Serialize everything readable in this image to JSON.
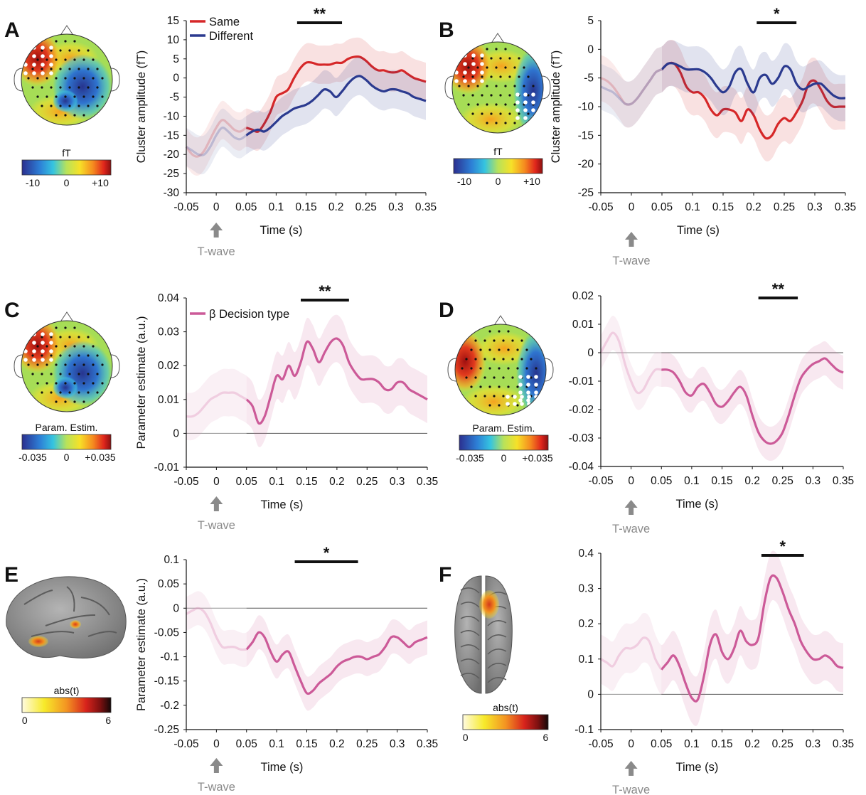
{
  "panels": [
    {
      "letter": "A",
      "map": {
        "type": "head",
        "hot": "left-front",
        "cold": "right-mid",
        "label": "fT",
        "tick_labels": [
          "-10",
          "0",
          "+10"
        ]
      },
      "star": "**",
      "arrow_label": "T-wave",
      "chart_data": {
        "type": "line",
        "title": "",
        "xlabel": "Time (s)",
        "ylabel": "Cluster amplitude (fT)",
        "xlim": [
          -0.05,
          0.35
        ],
        "ylim": [
          -30,
          15
        ],
        "xticks": [
          "-0.05",
          "0",
          "0.05",
          "0.1",
          "0.15",
          "0.2",
          "0.25",
          "0.3",
          "0.35"
        ],
        "yticks": [
          "15",
          "10",
          "5",
          "0",
          "-5",
          "-10",
          "-15",
          "-20",
          "-25",
          "-30"
        ],
        "ytick_values": [
          15,
          10,
          5,
          0,
          -5,
          -10,
          -15,
          -20,
          -25,
          -30
        ],
        "legend": "top-left",
        "zero_line": false,
        "baseline_end": 0.05,
        "sig_window": [
          0.135,
          0.21
        ],
        "x": [
          -0.05,
          -0.04,
          -0.03,
          -0.02,
          -0.01,
          0.0,
          0.01,
          0.02,
          0.03,
          0.04,
          0.05,
          0.06,
          0.07,
          0.08,
          0.09,
          0.1,
          0.11,
          0.12,
          0.13,
          0.14,
          0.15,
          0.16,
          0.17,
          0.18,
          0.19,
          0.2,
          0.21,
          0.22,
          0.23,
          0.24,
          0.25,
          0.26,
          0.27,
          0.28,
          0.29,
          0.3,
          0.31,
          0.32,
          0.33,
          0.34,
          0.35
        ],
        "series": [
          {
            "name": "Same",
            "color": "#d62728",
            "ci": 5,
            "values": [
              -18,
              -20,
              -20.5,
              -19,
              -16,
              -13,
              -11,
              -12,
              -13.5,
              -14,
              -13,
              -13.5,
              -14,
              -12,
              -9,
              -5,
              -4,
              -3,
              0,
              2.5,
              4,
              4,
              3.5,
              3.5,
              3.5,
              4,
              4,
              5,
              5.5,
              5.5,
              4.5,
              3,
              2,
              2,
              1.5,
              1.5,
              2,
              1,
              0,
              -0.5,
              -1
            ]
          },
          {
            "name": "Different",
            "color": "#2b3a8f",
            "ci": 5,
            "values": [
              -18,
              -19,
              -20,
              -20,
              -18,
              -15,
              -13,
              -14,
              -15.5,
              -16,
              -15,
              -14,
              -13.5,
              -14,
              -13,
              -11.5,
              -10,
              -9,
              -8,
              -7.5,
              -7,
              -6,
              -4.5,
              -3,
              -3.5,
              -5,
              -3.5,
              -1.5,
              0,
              0.5,
              -0.5,
              -2,
              -3,
              -3.5,
              -3,
              -3,
              -3.5,
              -4,
              -5,
              -5.5,
              -6
            ]
          }
        ]
      }
    },
    {
      "letter": "B",
      "map": {
        "type": "head",
        "hot": "left-front",
        "cold": "right-side",
        "label": "fT",
        "tick_labels": [
          "-10",
          "0",
          "+10"
        ]
      },
      "star": "*",
      "arrow_label": "T-wave",
      "chart_data": {
        "type": "line",
        "title": "",
        "xlabel": "Time (s)",
        "ylabel": "Cluster amplitude (fT)",
        "xlim": [
          -0.05,
          0.35
        ],
        "ylim": [
          -25,
          5
        ],
        "xticks": [
          "-0.05",
          "0",
          "0.05",
          "0.1",
          "0.15",
          "0.2",
          "0.25",
          "0.3",
          "0.35"
        ],
        "yticks": [
          "5",
          "0",
          "-5",
          "-10",
          "-15",
          "-20",
          "-25"
        ],
        "ytick_values": [
          5,
          0,
          -5,
          -10,
          -15,
          -20,
          -25
        ],
        "legend": "none",
        "zero_line": false,
        "baseline_end": 0.05,
        "sig_window": [
          0.205,
          0.27
        ],
        "x": [
          -0.05,
          -0.04,
          -0.03,
          -0.02,
          -0.01,
          0.0,
          0.01,
          0.02,
          0.03,
          0.04,
          0.05,
          0.06,
          0.07,
          0.08,
          0.09,
          0.1,
          0.11,
          0.12,
          0.13,
          0.14,
          0.15,
          0.16,
          0.17,
          0.18,
          0.19,
          0.2,
          0.21,
          0.22,
          0.23,
          0.24,
          0.25,
          0.26,
          0.27,
          0.28,
          0.29,
          0.3,
          0.31,
          0.32,
          0.33,
          0.34,
          0.35
        ],
        "series": [
          {
            "name": "",
            "color": "#d62728",
            "ci": 4,
            "values": [
              -5,
              -5.5,
              -6.5,
              -8,
              -9.5,
              -9.5,
              -8.5,
              -7,
              -5.5,
              -4,
              -3.5,
              -2.5,
              -2.5,
              -4,
              -6.5,
              -7.5,
              -7.5,
              -8.5,
              -10.5,
              -11.5,
              -10.5,
              -10.5,
              -11,
              -12.5,
              -10.5,
              -11.5,
              -14,
              -15.5,
              -15,
              -13,
              -12,
              -12.5,
              -11,
              -9,
              -6,
              -5.5,
              -7,
              -9,
              -10,
              -10,
              -10
            ]
          },
          {
            "name": "",
            "color": "#2b3a8f",
            "ci": 4,
            "values": [
              -6.5,
              -7,
              -7.5,
              -8.5,
              -9.5,
              -9.5,
              -8.5,
              -7,
              -5.5,
              -4,
              -3.5,
              -2.5,
              -2.5,
              -3,
              -3.5,
              -3.5,
              -3.5,
              -4,
              -5,
              -6.5,
              -7.5,
              -6.5,
              -4,
              -3.5,
              -6,
              -7.5,
              -5,
              -4.5,
              -6,
              -5,
              -3,
              -3.5,
              -6,
              -7,
              -6.5,
              -6,
              -6,
              -7,
              -8,
              -8.5,
              -8.5
            ]
          }
        ]
      }
    },
    {
      "letter": "C",
      "map": {
        "type": "head",
        "hot": "left-front",
        "cold": "right-mid",
        "label": "Param. Estim.",
        "tick_labels": [
          "-0.035",
          "0",
          "+0.035"
        ]
      },
      "star": "**",
      "arrow_label": "T-wave",
      "chart_data": {
        "type": "line",
        "title": "",
        "xlabel": "Time (s)",
        "ylabel": "Parameter estimate (a.u.)",
        "xlim": [
          -0.05,
          0.35
        ],
        "ylim": [
          -0.01,
          0.04
        ],
        "xticks": [
          "-0.05",
          "0",
          "0.05",
          "0.1",
          "0.15",
          "0.2",
          "0.25",
          "0.3",
          "0.35"
        ],
        "yticks": [
          "0.04",
          "0.03",
          "0.02",
          "0.01",
          "0",
          "-0.01"
        ],
        "ytick_values": [
          0.04,
          0.03,
          0.02,
          0.01,
          0,
          -0.01
        ],
        "legend": "top-left",
        "zero_line": true,
        "baseline_end": 0.05,
        "sig_window": [
          0.14,
          0.22
        ],
        "x": [
          -0.05,
          -0.04,
          -0.03,
          -0.02,
          -0.01,
          0.0,
          0.01,
          0.02,
          0.03,
          0.04,
          0.05,
          0.06,
          0.07,
          0.08,
          0.09,
          0.1,
          0.11,
          0.12,
          0.13,
          0.14,
          0.15,
          0.16,
          0.17,
          0.18,
          0.19,
          0.2,
          0.21,
          0.22,
          0.23,
          0.24,
          0.25,
          0.26,
          0.27,
          0.28,
          0.29,
          0.3,
          0.31,
          0.32,
          0.33,
          0.34,
          0.35
        ],
        "series": [
          {
            "name": "β Decision type",
            "color": "#cc5a98",
            "ci": 0.007,
            "values": [
              0.005,
              0.005,
              0.006,
              0.008,
              0.01,
              0.011,
              0.012,
              0.012,
              0.012,
              0.011,
              0.01,
              0.008,
              0.003,
              0.005,
              0.011,
              0.017,
              0.016,
              0.02,
              0.017,
              0.021,
              0.027,
              0.025,
              0.021,
              0.024,
              0.027,
              0.028,
              0.026,
              0.021,
              0.018,
              0.016,
              0.016,
              0.016,
              0.015,
              0.013,
              0.013,
              0.015,
              0.015,
              0.013,
              0.012,
              0.011,
              0.01
            ]
          }
        ]
      }
    },
    {
      "letter": "D",
      "map": {
        "type": "head",
        "hot": "left-side",
        "cold": "right-side",
        "label": "Param. Estim.",
        "tick_labels": [
          "-0.035",
          "0",
          "+0.035"
        ]
      },
      "star": "**",
      "arrow_label": "T-wave",
      "chart_data": {
        "type": "line",
        "title": "",
        "xlabel": "Time (s)",
        "ylabel": "",
        "xlim": [
          -0.05,
          0.35
        ],
        "ylim": [
          -0.04,
          0.02
        ],
        "xticks": [
          "-0.05",
          "0",
          "0.05",
          "0.1",
          "0.15",
          "0.2",
          "0.25",
          "0.3",
          "0.35"
        ],
        "yticks": [
          "0.02",
          "0.01",
          "0",
          "-0.01",
          "-0.02",
          "-0.03",
          "-0.04"
        ],
        "ytick_values": [
          0.02,
          0.01,
          0,
          -0.01,
          -0.02,
          -0.03,
          -0.04
        ],
        "legend": "none",
        "zero_line": true,
        "baseline_end": 0.05,
        "sig_window": [
          0.21,
          0.275
        ],
        "x": [
          -0.05,
          -0.04,
          -0.03,
          -0.02,
          -0.01,
          0.0,
          0.01,
          0.02,
          0.03,
          0.04,
          0.05,
          0.06,
          0.07,
          0.08,
          0.09,
          0.1,
          0.11,
          0.12,
          0.13,
          0.14,
          0.15,
          0.16,
          0.17,
          0.18,
          0.19,
          0.2,
          0.21,
          0.22,
          0.23,
          0.24,
          0.25,
          0.26,
          0.27,
          0.28,
          0.29,
          0.3,
          0.31,
          0.32,
          0.33,
          0.34,
          0.35
        ],
        "series": [
          {
            "name": "",
            "color": "#cc5a98",
            "ci": 0.006,
            "values": [
              0.0,
              0.004,
              0.007,
              0.004,
              -0.004,
              -0.01,
              -0.014,
              -0.013,
              -0.009,
              -0.006,
              -0.006,
              -0.006,
              -0.007,
              -0.01,
              -0.014,
              -0.015,
              -0.012,
              -0.011,
              -0.014,
              -0.018,
              -0.019,
              -0.017,
              -0.014,
              -0.012,
              -0.015,
              -0.022,
              -0.028,
              -0.031,
              -0.032,
              -0.031,
              -0.028,
              -0.022,
              -0.015,
              -0.009,
              -0.006,
              -0.004,
              -0.003,
              -0.002,
              -0.004,
              -0.006,
              -0.007
            ]
          }
        ]
      }
    },
    {
      "letter": "E",
      "map": {
        "type": "brain-side",
        "label": "abs(t)",
        "tick_labels": [
          "0",
          "6"
        ]
      },
      "star": "*",
      "arrow_label": "T-wave",
      "chart_data": {
        "type": "line",
        "title": "",
        "xlabel": "Time (s)",
        "ylabel": "Parameter estimate (a.u.)",
        "xlim": [
          -0.05,
          0.35
        ],
        "ylim": [
          -0.25,
          0.1
        ],
        "xticks": [
          "-0.05",
          "0",
          "0.05",
          "0.1",
          "0.15",
          "0.2",
          "0.25",
          "0.3",
          "0.35"
        ],
        "yticks": [
          "0.1",
          "0.05",
          "0",
          "-0.05",
          "-0.1",
          "-0.15",
          "-0.2",
          "-0.25"
        ],
        "ytick_values": [
          0.1,
          0.05,
          0,
          -0.05,
          -0.1,
          -0.15,
          -0.2,
          -0.25
        ],
        "legend": "none",
        "zero_line": true,
        "baseline_end": 0.05,
        "sig_window": [
          0.13,
          0.235
        ],
        "x": [
          -0.05,
          -0.04,
          -0.03,
          -0.02,
          -0.01,
          0.0,
          0.01,
          0.02,
          0.03,
          0.04,
          0.05,
          0.06,
          0.07,
          0.08,
          0.09,
          0.1,
          0.11,
          0.12,
          0.13,
          0.14,
          0.15,
          0.16,
          0.17,
          0.18,
          0.19,
          0.2,
          0.21,
          0.22,
          0.23,
          0.24,
          0.25,
          0.26,
          0.27,
          0.28,
          0.29,
          0.3,
          0.31,
          0.32,
          0.33,
          0.34,
          0.35
        ],
        "series": [
          {
            "name": "",
            "color": "#cc5a98",
            "ci": 0.035,
            "values": [
              -0.012,
              -0.005,
              0.0,
              -0.008,
              -0.03,
              -0.06,
              -0.08,
              -0.08,
              -0.08,
              -0.085,
              -0.085,
              -0.07,
              -0.05,
              -0.06,
              -0.09,
              -0.11,
              -0.095,
              -0.09,
              -0.12,
              -0.15,
              -0.175,
              -0.17,
              -0.155,
              -0.145,
              -0.135,
              -0.12,
              -0.11,
              -0.105,
              -0.1,
              -0.1,
              -0.105,
              -0.1,
              -0.095,
              -0.08,
              -0.06,
              -0.06,
              -0.07,
              -0.08,
              -0.07,
              -0.065,
              -0.06
            ]
          }
        ]
      }
    },
    {
      "letter": "F",
      "map": {
        "type": "brain-top",
        "label": "abs(t)",
        "tick_labels": [
          "0",
          "6"
        ]
      },
      "star": "*",
      "arrow_label": "T-wave",
      "chart_data": {
        "type": "line",
        "title": "",
        "xlabel": "Time (s)",
        "ylabel": "",
        "xlim": [
          -0.05,
          0.35
        ],
        "ylim": [
          -0.1,
          0.4
        ],
        "xticks": [
          "-0.05",
          "0",
          "0.05",
          "0.1",
          "0.15",
          "0.2",
          "0.25",
          "0.3",
          "0.35"
        ],
        "yticks": [
          "0.4",
          "0.3",
          "0.2",
          "0.1",
          "0",
          "-0.1"
        ],
        "ytick_values": [
          0.4,
          0.3,
          0.2,
          0.1,
          0,
          -0.1
        ],
        "legend": "none",
        "zero_line": true,
        "baseline_end": 0.05,
        "sig_window": [
          0.215,
          0.285
        ],
        "x": [
          -0.05,
          -0.04,
          -0.03,
          -0.02,
          -0.01,
          0.0,
          0.01,
          0.02,
          0.03,
          0.04,
          0.05,
          0.06,
          0.07,
          0.08,
          0.09,
          0.1,
          0.11,
          0.12,
          0.13,
          0.14,
          0.15,
          0.16,
          0.17,
          0.18,
          0.19,
          0.2,
          0.21,
          0.22,
          0.23,
          0.24,
          0.25,
          0.26,
          0.27,
          0.28,
          0.29,
          0.3,
          0.31,
          0.32,
          0.33,
          0.34,
          0.35
        ],
        "series": [
          {
            "name": "",
            "color": "#cc5a98",
            "ci": 0.07,
            "values": [
              0.1,
              0.09,
              0.08,
              0.11,
              0.13,
              0.13,
              0.14,
              0.16,
              0.15,
              0.1,
              0.07,
              0.09,
              0.11,
              0.08,
              0.03,
              -0.01,
              -0.015,
              0.05,
              0.14,
              0.17,
              0.12,
              0.1,
              0.13,
              0.18,
              0.15,
              0.14,
              0.16,
              0.26,
              0.33,
              0.33,
              0.29,
              0.24,
              0.2,
              0.15,
              0.12,
              0.1,
              0.1,
              0.11,
              0.1,
              0.08,
              0.075
            ]
          }
        ]
      }
    }
  ]
}
